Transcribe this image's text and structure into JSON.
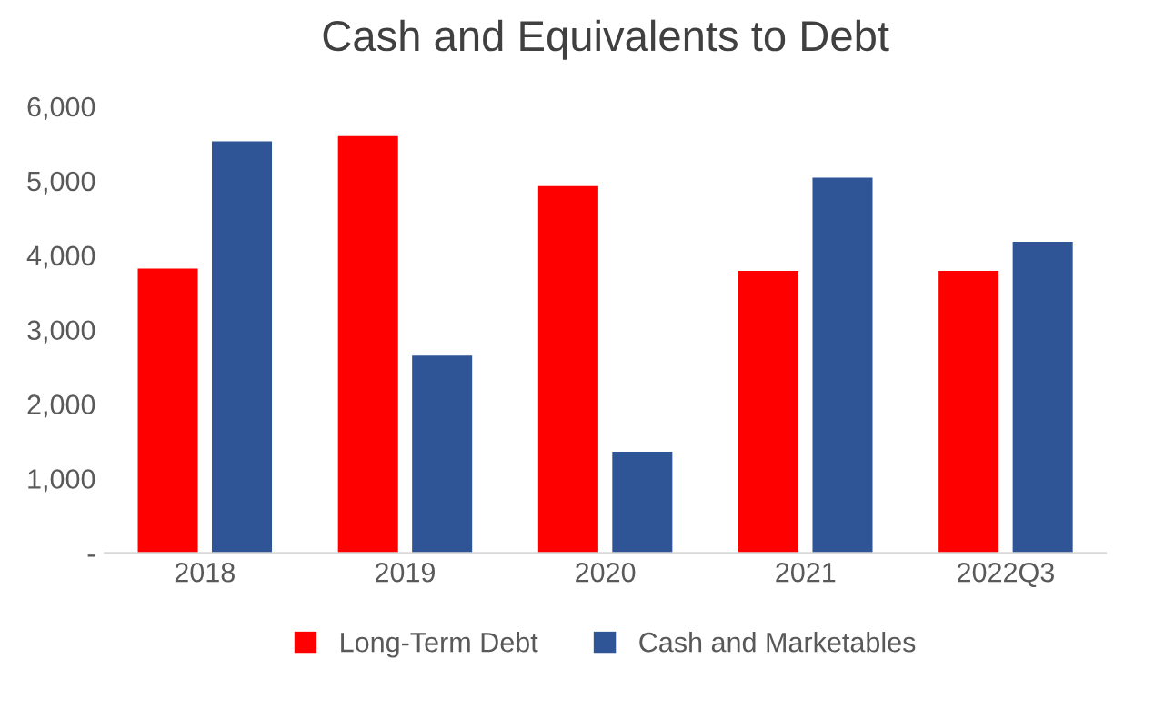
{
  "chart_data": {
    "type": "bar",
    "title": "Cash and Equivalents to Debt",
    "categories": [
      "2018",
      "2019",
      "2020",
      "2021",
      "2022Q3"
    ],
    "series": [
      {
        "name": "Long-Term Debt",
        "color": "#ff0000",
        "values": [
          3820,
          5600,
          4930,
          3790,
          3790
        ]
      },
      {
        "name": "Cash and Marketables",
        "color": "#2f5597",
        "values": [
          5530,
          2650,
          1360,
          5040,
          4180
        ]
      }
    ],
    "ylim": [
      0,
      6000
    ],
    "yticks": [
      {
        "value": 0,
        "label": "-"
      },
      {
        "value": 1000,
        "label": "1,000"
      },
      {
        "value": 2000,
        "label": "2,000"
      },
      {
        "value": 3000,
        "label": "3,000"
      },
      {
        "value": 4000,
        "label": "4,000"
      },
      {
        "value": 5000,
        "label": "5,000"
      },
      {
        "value": 6000,
        "label": "6,000"
      }
    ],
    "grid": false,
    "legend": "bottom"
  }
}
